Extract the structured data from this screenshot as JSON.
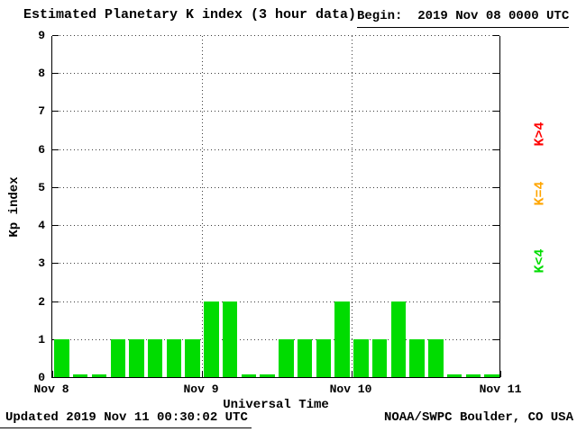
{
  "header": {
    "title": "Estimated Planetary K index (3 hour data)",
    "begin": "Begin:  2019 Nov 08 0000 UTC"
  },
  "footer": {
    "updated": "Updated 2019 Nov 11 00:30:02 UTC",
    "credit": "NOAA/SWPC Boulder, CO USA"
  },
  "axes": {
    "y_label": "Kp index",
    "x_label": "Universal Time",
    "y_ticks": [
      "0",
      "1",
      "2",
      "3",
      "4",
      "5",
      "6",
      "7",
      "8",
      "9"
    ],
    "x_ticks": [
      "Nov 8",
      "Nov 9",
      "Nov 10",
      "Nov 11"
    ]
  },
  "legend": [
    {
      "label": "K>4",
      "color": "#ff0000"
    },
    {
      "label": "K=4",
      "color": "#ffa500"
    },
    {
      "label": "K<4",
      "color": "#00dc00"
    }
  ],
  "chart_data": {
    "type": "bar",
    "title": "Estimated Planetary K index (3 hour data)",
    "xlabel": "Universal Time",
    "ylabel": "Kp index",
    "ylim": [
      0,
      9
    ],
    "x_range": [
      "2019 Nov 08 0000 UTC",
      "2019 Nov 11 0000 UTC"
    ],
    "interval_hours": 3,
    "bars_per_day": 8,
    "day_labels": [
      "Nov 8",
      "Nov 9",
      "Nov 10",
      "Nov 11"
    ],
    "values": [
      1,
      0,
      0,
      1,
      1,
      1,
      1,
      1,
      2,
      2,
      0,
      0,
      1,
      1,
      1,
      2,
      1,
      1,
      2,
      1,
      1,
      0,
      0,
      0
    ],
    "series": [
      {
        "name": "Kp Nov 8",
        "values": [
          1,
          0,
          0,
          1,
          1,
          1,
          1,
          1
        ]
      },
      {
        "name": "Kp Nov 9",
        "values": [
          2,
          2,
          0,
          0,
          1,
          1,
          1,
          2
        ]
      },
      {
        "name": "Kp Nov 10",
        "values": [
          1,
          1,
          2,
          1,
          1,
          0,
          0,
          0
        ]
      }
    ],
    "colors": {
      "k_lt_4": "#00dc00",
      "k_eq_4": "#ffa500",
      "k_gt_4": "#ff0000"
    },
    "grid": true,
    "legend_position": "right-rotated"
  }
}
